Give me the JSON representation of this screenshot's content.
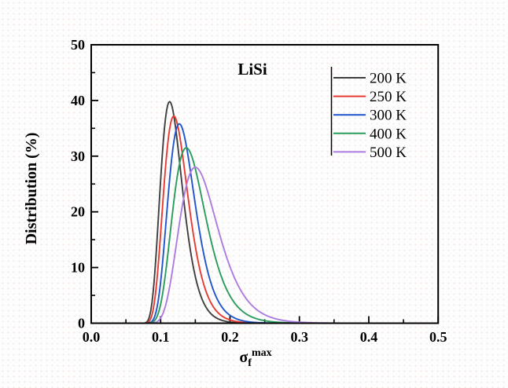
{
  "figure": {
    "title": "LiSi",
    "y_axis_label": "Distribution (%)",
    "x_axis_label": {
      "base": "σ",
      "sub": "f",
      "sup": "max"
    }
  },
  "chart_data": {
    "type": "line",
    "title": "LiSi",
    "xlabel": "σ_f^max",
    "ylabel": "Distribution (%)",
    "xlim": [
      0.0,
      0.5
    ],
    "ylim": [
      0,
      50
    ],
    "x_ticks": [
      0.0,
      0.1,
      0.2,
      0.3,
      0.4,
      0.5
    ],
    "x_tick_labels": [
      "0.0",
      "0.1",
      "0.2",
      "0.3",
      "0.4",
      "0.5"
    ],
    "y_ticks": [
      0,
      10,
      20,
      30,
      40,
      50
    ],
    "y_tick_labels": [
      "0",
      "10",
      "20",
      "30",
      "40",
      "50"
    ],
    "x_minor_step": 0.05,
    "y_minor_step": 5,
    "grid": false,
    "legend_position": "upper right",
    "series": [
      {
        "name": "200 K",
        "color": "#3f3f3f",
        "peak": [
          0.113,
          39.8
        ],
        "model": {
          "x0": 0.06,
          "tm": 0.053,
          "w": 0.3,
          "height": 39.8
        },
        "points": [
          [
            0.07,
            0.1
          ],
          [
            0.09,
            6.6
          ],
          [
            0.1,
            25.6
          ],
          [
            0.113,
            39.8
          ],
          [
            0.13,
            25.9
          ],
          [
            0.15,
            8.4
          ],
          [
            0.17,
            2.1
          ],
          [
            0.19,
            0.5
          ],
          [
            0.22,
            0.0
          ]
        ]
      },
      {
        "name": "250 K",
        "color": "#e73b32",
        "peak": [
          0.119,
          37.2
        ],
        "model": {
          "x0": 0.06,
          "tm": 0.059,
          "w": 0.3,
          "height": 37.2
        },
        "points": [
          [
            0.07,
            0.0
          ],
          [
            0.09,
            2.9
          ],
          [
            0.1,
            16.1
          ],
          [
            0.11,
            31.9
          ],
          [
            0.119,
            37.2
          ],
          [
            0.14,
            22.2
          ],
          [
            0.16,
            7.9
          ],
          [
            0.18,
            2.3
          ],
          [
            0.2,
            0.6
          ],
          [
            0.23,
            0.0
          ]
        ]
      },
      {
        "name": "300 K",
        "color": "#2055cc",
        "peak": [
          0.127,
          35.8
        ],
        "model": {
          "x0": 0.06,
          "tm": 0.067,
          "w": 0.29,
          "height": 35.8
        },
        "points": [
          [
            0.07,
            0.0
          ],
          [
            0.1,
            7.4
          ],
          [
            0.11,
            21.5
          ],
          [
            0.127,
            35.8
          ],
          [
            0.15,
            21.3
          ],
          [
            0.17,
            8.3
          ],
          [
            0.19,
            2.6
          ],
          [
            0.21,
            0.8
          ],
          [
            0.25,
            0.0
          ]
        ]
      },
      {
        "name": "400 K",
        "color": "#2a9c5c",
        "peak": [
          0.137,
          31.5
        ],
        "model": {
          "x0": 0.06,
          "tm": 0.077,
          "w": 0.31,
          "height": 31.5
        },
        "points": [
          [
            0.07,
            0.0
          ],
          [
            0.1,
            3.4
          ],
          [
            0.12,
            22.8
          ],
          [
            0.137,
            31.5
          ],
          [
            0.16,
            22.1
          ],
          [
            0.18,
            11.3
          ],
          [
            0.2,
            4.9
          ],
          [
            0.22,
            1.9
          ],
          [
            0.25,
            0.5
          ],
          [
            0.29,
            0.0
          ]
        ]
      },
      {
        "name": "500 K",
        "color": "#ad7ce0",
        "peak": [
          0.15,
          28.0
        ],
        "model": {
          "x0": 0.06,
          "tm": 0.09,
          "w": 0.31,
          "height": 28.0
        },
        "points": [
          [
            0.08,
            0.0
          ],
          [
            0.11,
            4.6
          ],
          [
            0.13,
            20.2
          ],
          [
            0.15,
            28.0
          ],
          [
            0.17,
            22.7
          ],
          [
            0.19,
            13.9
          ],
          [
            0.21,
            7.2
          ],
          [
            0.24,
            2.3
          ],
          [
            0.27,
            0.7
          ],
          [
            0.31,
            0.2
          ],
          [
            0.36,
            0.0
          ]
        ]
      }
    ]
  }
}
